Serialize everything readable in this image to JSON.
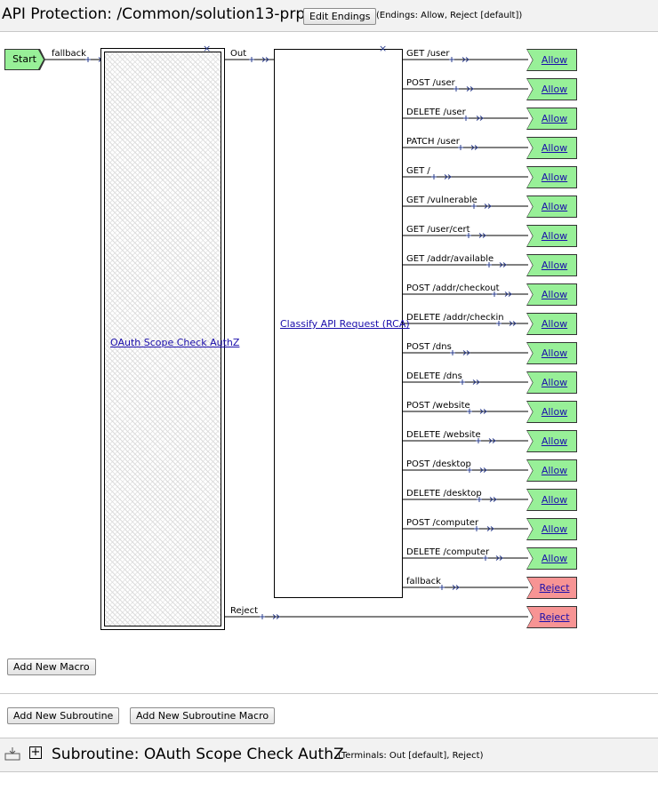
{
  "header": {
    "title": "API Protection: /Common/solution13-prp",
    "edit_endings_label": "Edit Endings",
    "endings_note": "(Endings: Allow, Reject [default])"
  },
  "flow": {
    "start_label": "Start",
    "start_branch": "fallback",
    "macro": {
      "name": "OAuth Scope Check AuthZ",
      "out_branch": "Out",
      "reject_branch": "Reject",
      "reject_ending": "Reject"
    },
    "rca": {
      "name": "Classify API Request (RCA)",
      "branches": [
        {
          "label": "GET /user",
          "ending": "Allow",
          "type": "allow"
        },
        {
          "label": "POST /user",
          "ending": "Allow",
          "type": "allow"
        },
        {
          "label": "DELETE /user",
          "ending": "Allow",
          "type": "allow"
        },
        {
          "label": "PATCH /user",
          "ending": "Allow",
          "type": "allow"
        },
        {
          "label": "GET /",
          "ending": "Allow",
          "type": "allow"
        },
        {
          "label": "GET /vulnerable",
          "ending": "Allow",
          "type": "allow"
        },
        {
          "label": "GET /user/cert",
          "ending": "Allow",
          "type": "allow"
        },
        {
          "label": "GET /addr/available",
          "ending": "Allow",
          "type": "allow"
        },
        {
          "label": "POST /addr/checkout",
          "ending": "Allow",
          "type": "allow"
        },
        {
          "label": "DELETE /addr/checkin",
          "ending": "Allow",
          "type": "allow"
        },
        {
          "label": "POST /dns",
          "ending": "Allow",
          "type": "allow"
        },
        {
          "label": "DELETE /dns",
          "ending": "Allow",
          "type": "allow"
        },
        {
          "label": "POST /website",
          "ending": "Allow",
          "type": "allow"
        },
        {
          "label": "DELETE /website",
          "ending": "Allow",
          "type": "allow"
        },
        {
          "label": "POST /desktop",
          "ending": "Allow",
          "type": "allow"
        },
        {
          "label": "DELETE /desktop",
          "ending": "Allow",
          "type": "allow"
        },
        {
          "label": "POST /computer",
          "ending": "Allow",
          "type": "allow"
        },
        {
          "label": "DELETE /computer",
          "ending": "Allow",
          "type": "allow"
        },
        {
          "label": "fallback",
          "ending": "Reject",
          "type": "reject"
        }
      ]
    }
  },
  "actions": {
    "add_macro_label": "Add New Macro",
    "add_subroutine_label": "Add New Subroutine",
    "add_subroutine_macro_label": "Add New Subroutine Macro"
  },
  "subroutine": {
    "title": "Subroutine: OAuth Scope Check AuthZ",
    "terminals_note": "(Terminals: Out [default], Reject)"
  },
  "colors": {
    "allow_fill": "#98f098",
    "reject_fill": "#f79494",
    "link": "#1a0dab",
    "connector": "#2a3c8c"
  }
}
